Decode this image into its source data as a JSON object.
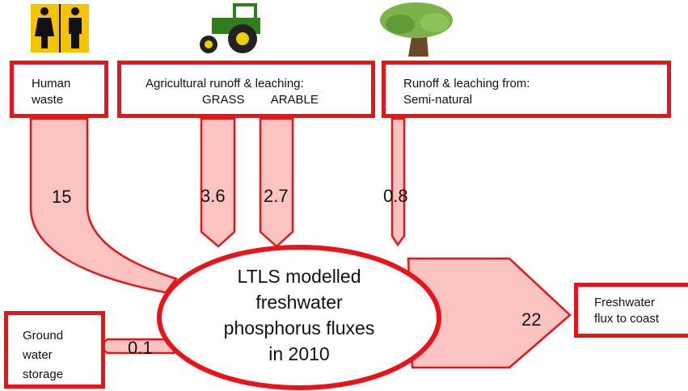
{
  "sources": [
    {
      "label": "Human waste",
      "flow": "15"
    },
    {
      "label": "Agricultural runoff & leaching:",
      "sublabels": [
        "GRASS",
        "ARABLE"
      ],
      "flows": [
        "3.6",
        "2.7"
      ]
    },
    {
      "label": "Runoff & leaching from: Semi-natural",
      "flow": "0.8"
    }
  ],
  "center": {
    "lines": [
      "LTLS modelled",
      "freshwater",
      "phosphorus fluxes",
      "in 2010"
    ]
  },
  "sinks": [
    {
      "label": "Ground water storage",
      "flow": "0.1"
    },
    {
      "label": "Freshwater flux to coast",
      "flow": "22"
    }
  ]
}
